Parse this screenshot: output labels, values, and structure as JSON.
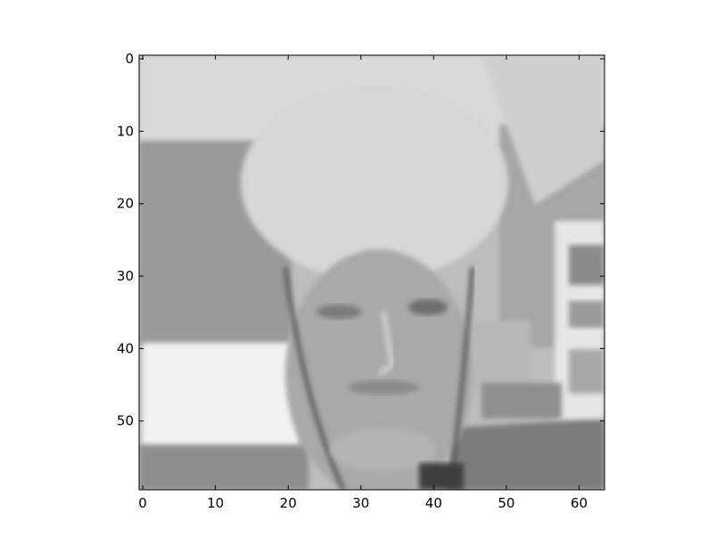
{
  "chart_data": {
    "type": "heatmap",
    "title": "",
    "xlabel": "",
    "ylabel": "",
    "image_shape": [
      60,
      64
    ],
    "colormap": "gray",
    "interpolation": "smooth",
    "xlim": [
      -0.5,
      63.5
    ],
    "ylim": [
      59.5,
      -0.5
    ],
    "x_ticks": [
      0,
      10,
      20,
      30,
      40,
      50,
      60
    ],
    "x_tick_labels": [
      "0",
      "10",
      "20",
      "30",
      "40",
      "50",
      "60"
    ],
    "y_ticks": [
      0,
      10,
      20,
      30,
      40,
      50
    ],
    "y_tick_labels": [
      "0",
      "10",
      "20",
      "30",
      "40",
      "50"
    ],
    "grid": false,
    "legend": "none",
    "content": "grayscale photograph of a person's face"
  }
}
